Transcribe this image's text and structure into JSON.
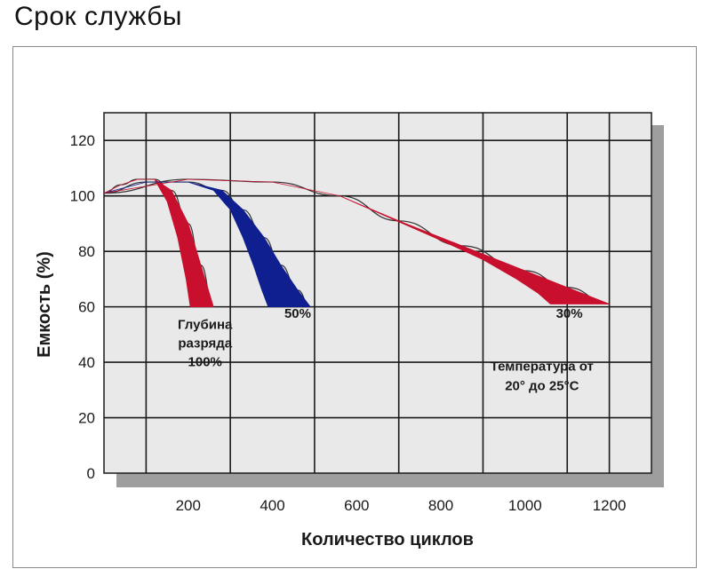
{
  "page": {
    "title": "Срок службы"
  },
  "colors": {
    "plot_background": "#e9e9e9",
    "grid": "#1a1a1a",
    "shadow": "#9e9e9e",
    "red": "#c8102e",
    "blue": "#0f1f8f",
    "thin_line": "#333333"
  },
  "chart_data": {
    "type": "area",
    "xlabel": "Количество циклов",
    "ylabel": "Емкость (%)",
    "xlim": [
      0,
      1300
    ],
    "ylim": [
      0,
      130
    ],
    "x_ticks": [
      200,
      400,
      600,
      800,
      1000,
      1200
    ],
    "y_ticks": [
      0,
      20,
      40,
      60,
      80,
      100,
      120
    ],
    "grid": true,
    "series": [
      {
        "name": "Глубина разряда 100%",
        "label_lines": [
          "Глубина",
          "разряда",
          "100%"
        ],
        "color": "red",
        "label_at": [
          240,
          52
        ],
        "upper": [
          [
            0,
            101
          ],
          [
            40,
            104
          ],
          [
            80,
            106
          ],
          [
            120,
            106
          ],
          [
            160,
            102
          ],
          [
            200,
            90
          ],
          [
            230,
            75
          ],
          [
            260,
            60
          ]
        ],
        "lower": [
          [
            0,
            101
          ],
          [
            40,
            104
          ],
          [
            80,
            106
          ],
          [
            120,
            106
          ],
          [
            150,
            98
          ],
          [
            175,
            85
          ],
          [
            195,
            70
          ],
          [
            205,
            60
          ]
        ]
      },
      {
        "name": "50%",
        "label_lines": [
          "50%"
        ],
        "color": "blue",
        "label_at": [
          460,
          56
        ],
        "upper": [
          [
            0,
            101
          ],
          [
            100,
            105
          ],
          [
            200,
            105
          ],
          [
            280,
            102
          ],
          [
            330,
            95
          ],
          [
            380,
            85
          ],
          [
            420,
            75
          ],
          [
            460,
            66
          ],
          [
            490,
            60
          ]
        ],
        "lower": [
          [
            0,
            101
          ],
          [
            100,
            105
          ],
          [
            200,
            105
          ],
          [
            260,
            102
          ],
          [
            300,
            95
          ],
          [
            330,
            85
          ],
          [
            355,
            75
          ],
          [
            375,
            66
          ],
          [
            390,
            60
          ]
        ]
      },
      {
        "name": "30%",
        "label_lines": [
          "30%"
        ],
        "color": "red",
        "label_at": [
          1105,
          56
        ],
        "upper": [
          [
            0,
            101
          ],
          [
            200,
            106
          ],
          [
            400,
            105
          ],
          [
            560,
            100
          ],
          [
            700,
            91
          ],
          [
            850,
            82
          ],
          [
            1000,
            73
          ],
          [
            1100,
            67
          ],
          [
            1200,
            61
          ]
        ],
        "lower": [
          [
            0,
            101
          ],
          [
            200,
            106
          ],
          [
            400,
            105
          ],
          [
            560,
            100
          ],
          [
            680,
            92
          ],
          [
            800,
            84
          ],
          [
            900,
            77
          ],
          [
            980,
            70
          ],
          [
            1030,
            65
          ],
          [
            1060,
            61
          ]
        ]
      }
    ],
    "annotation": {
      "lines": [
        "Температура от",
        "20° до 25°С"
      ],
      "at": [
        1040,
        37
      ]
    }
  }
}
